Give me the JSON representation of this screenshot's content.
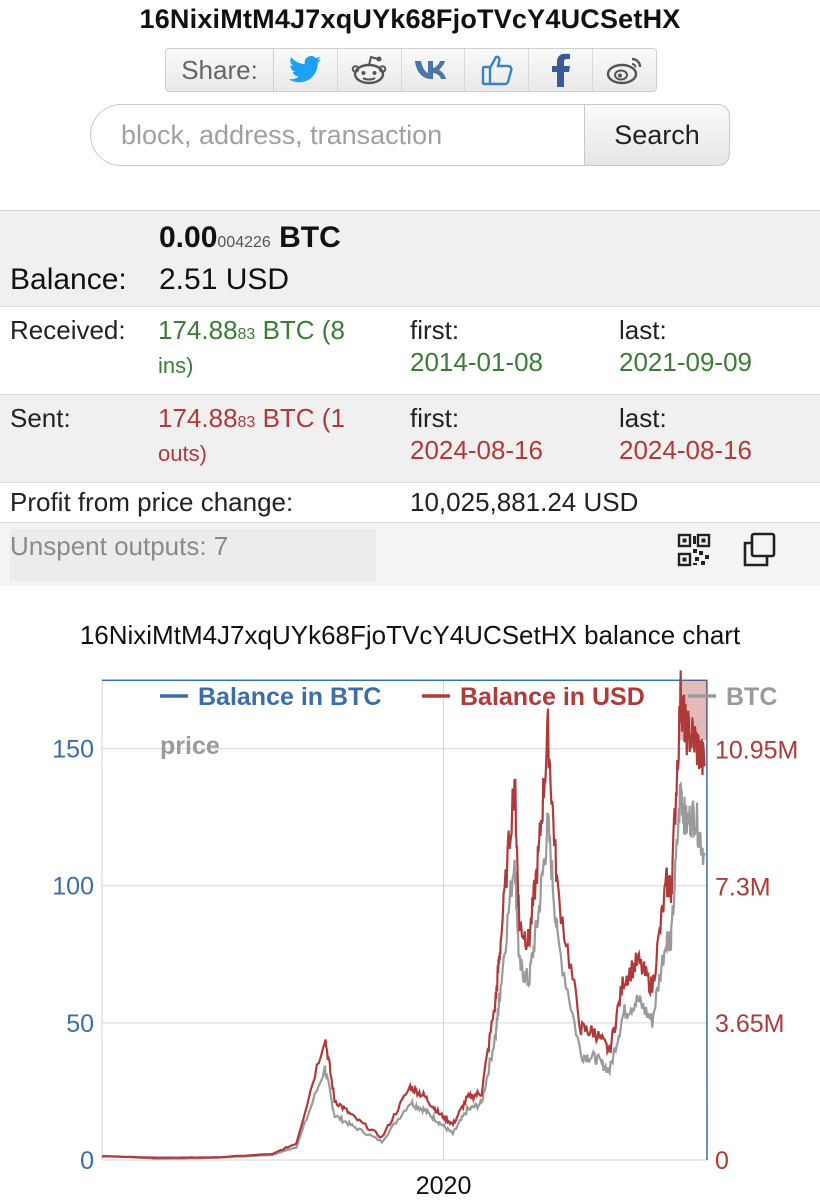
{
  "address": "16NixiMtM4J7xqUYk68FjoTVcY4UCSetHX",
  "share": {
    "label": "Share:",
    "buttons": [
      {
        "icon": "twitter-icon",
        "color": "#1da1f2"
      },
      {
        "icon": "reddit-icon",
        "color": "#555555"
      },
      {
        "icon": "vk-icon",
        "color": "#4a76a8"
      },
      {
        "icon": "like-icon",
        "color": "#3b82c4"
      },
      {
        "icon": "facebook-icon",
        "color": "#3b5998"
      },
      {
        "icon": "weibo-icon",
        "color": "#555555"
      }
    ]
  },
  "search": {
    "placeholder": "block, address, transaction",
    "value": "",
    "button_label": "Search"
  },
  "balance": {
    "label": "Balance:",
    "btc_main": "0.00",
    "btc_small": "004226",
    "btc_unit": "BTC",
    "usd": "2.51 USD"
  },
  "received": {
    "label": "Received:",
    "amount_main": "174.88",
    "amount_small": "83",
    "unit_count": "BTC (8",
    "unit_count_2": "ins)",
    "first_label": "first:",
    "first_date": "2014-01-08",
    "last_label": "last:",
    "last_date": "2021-09-09"
  },
  "sent": {
    "label": "Sent:",
    "amount_main": "174.88",
    "amount_small": "83",
    "unit_count": "BTC (1",
    "unit_count_2": "outs)",
    "first_label": "first:",
    "first_date": "2024-08-16",
    "last_label": "last:",
    "last_date": "2024-08-16"
  },
  "profit": {
    "label": "Profit from price change:",
    "value": "10,025,881.24 USD"
  },
  "unspent": {
    "label": "Unspent outputs: 7",
    "qr_icon": "qr-code-icon",
    "copy_icon": "copy-icon"
  },
  "colors": {
    "green": "#3a7d34",
    "red": "#b03a3a",
    "btc_blue": "#3b6ea8",
    "price_gray": "#9a9a9a"
  },
  "chart_title": "16NixiMtM4J7xqUYk68FjoTVcY4UCSetHX balance chart",
  "chart_data": {
    "type": "line",
    "legend": [
      "Balance in BTC",
      "Balance in USD",
      "BTC",
      "price"
    ],
    "legend_placement": "top",
    "x_tick_label": "2020",
    "y_left_ticks": [
      "0",
      "50",
      "100",
      "150"
    ],
    "y_right_ticks": [
      "0",
      "3.65M",
      "7.3M",
      "10.95M"
    ],
    "ylim_left": [
      0,
      175
    ],
    "ylim_right": [
      0,
      12800000
    ],
    "grid": true,
    "series": [
      {
        "name": "Balance in BTC",
        "color": "#3b6ea8",
        "x": [
          "2014-01-08",
          "2021-09-09",
          "2024-08-16",
          "2024-08-17"
        ],
        "y": [
          174.8883,
          174.8883,
          174.8883,
          4.226e-05
        ]
      },
      {
        "name": "Balance in USD",
        "color": "#b03a3a",
        "x": [
          "2014-01",
          "2015-01",
          "2016-01",
          "2017-01",
          "2017-06",
          "2017-12",
          "2018-02",
          "2018-06",
          "2018-12",
          "2019-06",
          "2019-09",
          "2019-12",
          "2020-03",
          "2020-06",
          "2020-09",
          "2020-12",
          "2021-01",
          "2021-04",
          "2021-05",
          "2021-07",
          "2021-09",
          "2021-11",
          "2022-01",
          "2022-06",
          "2022-09",
          "2022-12",
          "2023-03",
          "2023-06",
          "2023-09",
          "2023-12",
          "2024-01",
          "2024-03",
          "2024-04",
          "2024-06",
          "2024-08"
        ],
        "y": [
          100000,
          60000,
          70000,
          160000,
          450000,
          3300000,
          1600000,
          1150000,
          600000,
          1950000,
          1700000,
          1250000,
          950000,
          1650000,
          1800000,
          4300000,
          5800000,
          10200000,
          6300000,
          5800000,
          8100000,
          11400000,
          7200000,
          3500000,
          3400000,
          2900000,
          4800000,
          5300000,
          4600000,
          7400000,
          7200000,
          12400000,
          11500000,
          11200000,
          10500000
        ]
      },
      {
        "name": "BTC price",
        "color": "#9a9a9a",
        "x": [
          "2014-01",
          "2015-01",
          "2016-01",
          "2017-01",
          "2017-06",
          "2017-12",
          "2018-02",
          "2018-06",
          "2018-12",
          "2019-06",
          "2019-09",
          "2019-12",
          "2020-03",
          "2020-06",
          "2020-09",
          "2020-12",
          "2021-01",
          "2021-04",
          "2021-05",
          "2021-07",
          "2021-09",
          "2021-11",
          "2022-01",
          "2022-06",
          "2022-09",
          "2022-12",
          "2023-03",
          "2023-06",
          "2023-09",
          "2023-12",
          "2024-01",
          "2024-03",
          "2024-04",
          "2024-06",
          "2024-08"
        ],
        "y": [
          800,
          250,
          430,
          1000,
          2500,
          17500,
          8500,
          6400,
          3500,
          11000,
          9500,
          7200,
          5000,
          9500,
          10800,
          24000,
          33000,
          58000,
          37000,
          34000,
          47000,
          64000,
          42000,
          20000,
          19500,
          17000,
          28000,
          30500,
          26500,
          42500,
          42000,
          71000,
          64000,
          66000,
          58000
        ]
      }
    ]
  }
}
